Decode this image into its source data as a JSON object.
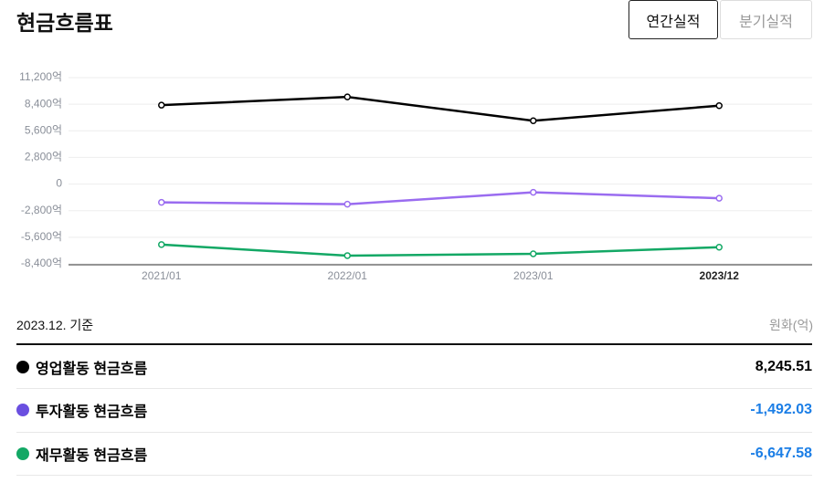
{
  "header": {
    "title": "현금흐름표",
    "tabs": [
      "연간실적",
      "분기실적"
    ]
  },
  "chart_data": {
    "type": "line",
    "categories": [
      "2021/01",
      "2022/01",
      "2023/01",
      "2023/12"
    ],
    "series": [
      {
        "name": "영업활동 현금흐름",
        "color": "#000000",
        "values": [
          8300,
          9170,
          6660,
          8245.51
        ]
      },
      {
        "name": "투자활동 현금흐름",
        "color": "#9a6cf0",
        "values": [
          -1930,
          -2120,
          -870,
          -1492.03
        ]
      },
      {
        "name": "재무활동 현금흐름",
        "color": "#13a865",
        "values": [
          -6370,
          -7530,
          -7340,
          -6647.58
        ]
      }
    ],
    "ylim": [
      -8400,
      11200
    ],
    "yticks": [
      {
        "value": 11200,
        "label": "11,200억"
      },
      {
        "value": 8400,
        "label": "8,400억"
      },
      {
        "value": 5600,
        "label": "5,600억"
      },
      {
        "value": 2800,
        "label": "2,800억"
      },
      0,
      {
        "value": -2800,
        "label": "-2,800억"
      },
      {
        "value": -5600,
        "label": "-5,600억"
      },
      {
        "value": -8400,
        "label": "-8,400억"
      }
    ],
    "grid": true
  },
  "table": {
    "basis": "2023.12. 기준",
    "unit": "원화(억)",
    "rows": [
      {
        "name": "영업활동 현금흐름",
        "value": "8,245.51",
        "dot": "#000000",
        "color": "#000000"
      },
      {
        "name": "투자활동 현금흐름",
        "value": "-1,492.03",
        "dot": "#6a4fe0",
        "color": "#1b7ee6"
      },
      {
        "name": "재무활동 현금흐름",
        "value": "-6,647.58",
        "dot": "#13a865",
        "color": "#1b7ee6"
      }
    ]
  }
}
